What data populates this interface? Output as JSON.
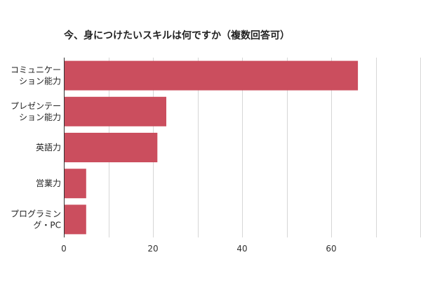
{
  "chart_data": {
    "type": "bar",
    "orientation": "horizontal",
    "title": "今、身につけたいスキルは何ですか（複数回答可）",
    "categories": [
      [
        "コミュニケー",
        "ション能力"
      ],
      [
        "プレゼンテー",
        "ション能力"
      ],
      [
        "英語力"
      ],
      [
        "営業力"
      ],
      [
        "プログラミン",
        "グ・PC"
      ]
    ],
    "values": [
      66,
      23,
      21,
      5,
      5
    ],
    "xlim": [
      0,
      80
    ],
    "xticks": [
      0,
      20,
      40,
      60
    ],
    "grid": true,
    "colors": {
      "bar": "#cb4e5e",
      "grid": "#d6d6d6",
      "axis": "#333333"
    }
  }
}
